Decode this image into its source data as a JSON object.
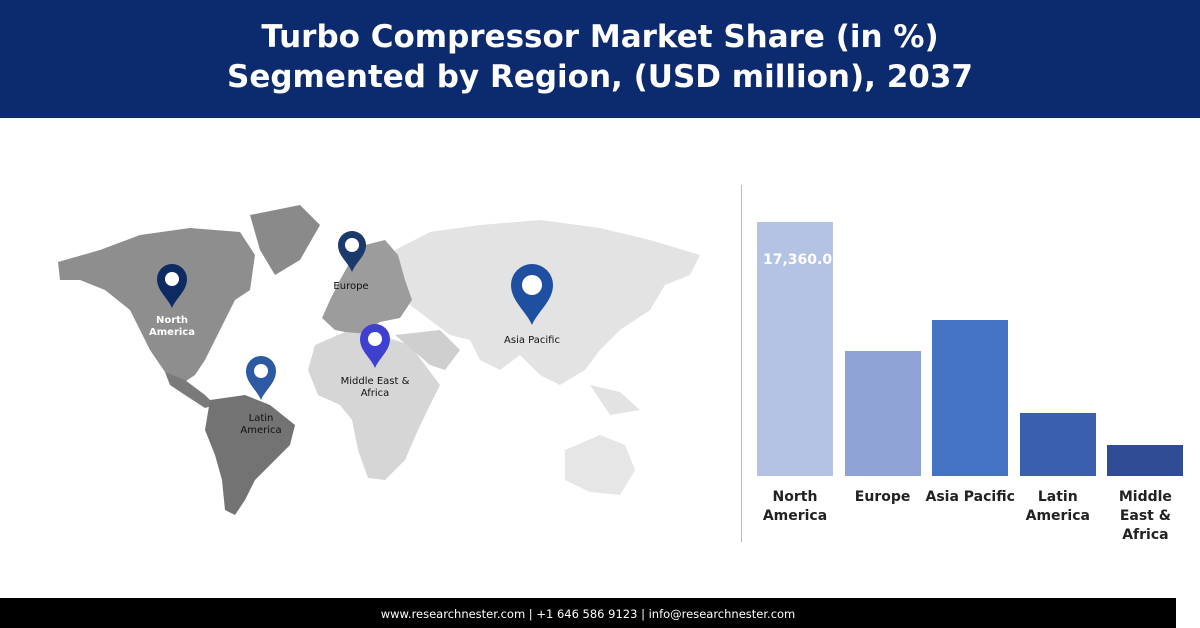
{
  "header": {
    "title_lines": [
      "Turbo Compressor Market Share (in %)",
      "Segmented by Region, (USD million), 2037"
    ]
  },
  "map": {
    "labels": [
      "North America",
      "Europe",
      "Asia Pacific",
      "Middle East & Africa",
      "Latin America"
    ]
  },
  "chart_data": {
    "type": "bar",
    "categories": [
      "North America",
      "Europe",
      "Asia Pacific",
      "Latin America",
      "Middle East & Africa"
    ],
    "values": [
      17360,
      8543,
      10662,
      4306,
      2119
    ],
    "value_labels": [
      "17,360.00",
      null,
      null,
      null,
      null
    ],
    "colors": [
      "#b4c3e4",
      "#8fa3d6",
      "#4472c4",
      "#3a5fae",
      "#2e4b93"
    ]
  },
  "footer": {
    "text": "www.researchnester.com  | +1 646 586 9123 | info@researchnester.com"
  }
}
